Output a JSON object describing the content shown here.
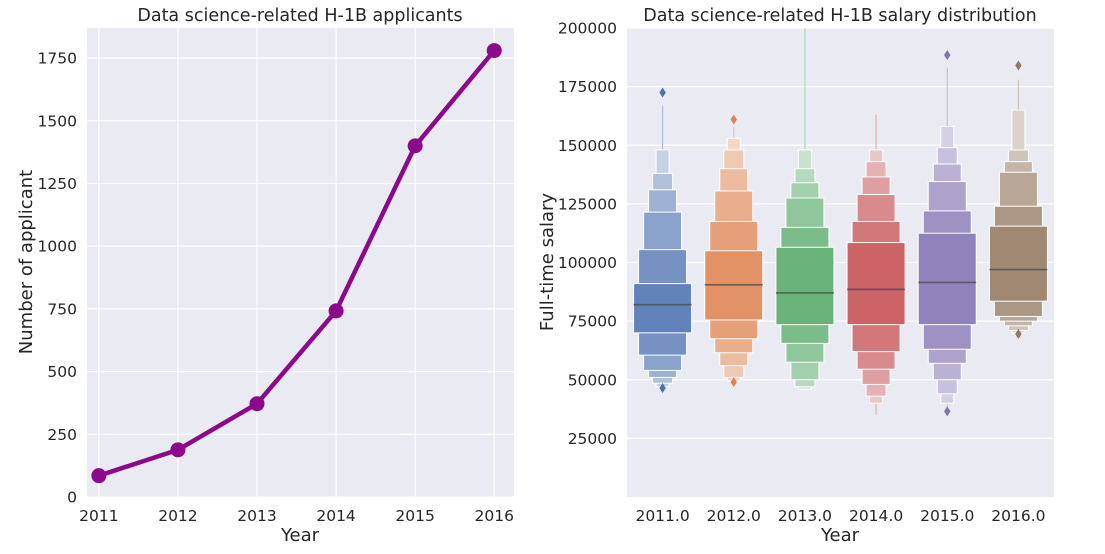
{
  "chart_data": [
    {
      "type": "line",
      "title": "Data science-related H-1B applicants",
      "xlabel": "Year",
      "ylabel": "Number of applicant",
      "x": [
        2011,
        2012,
        2013,
        2014,
        2015,
        2016
      ],
      "xticks": [
        "2011",
        "2012",
        "2013",
        "2014",
        "2015",
        "2016"
      ],
      "xlim": [
        2010.85,
        2016.25
      ],
      "yticks": [
        0,
        250,
        500,
        750,
        1000,
        1250,
        1500,
        1750
      ],
      "ylim": [
        0,
        1870
      ],
      "grid": true,
      "series": [
        {
          "values": [
            85,
            188,
            372,
            742,
            1400,
            1780
          ],
          "color": "#8b0a8b"
        }
      ]
    },
    {
      "type": "boxen",
      "title": "Data science-related H-1B salary distribution",
      "xlabel": "Year",
      "ylabel": "Full-time salary",
      "categories": [
        "2011.0",
        "2012.0",
        "2013.0",
        "2014.0",
        "2015.0",
        "2016.0"
      ],
      "yticks": [
        25000,
        50000,
        75000,
        100000,
        125000,
        150000,
        175000,
        200000
      ],
      "ylim": [
        0,
        200000
      ],
      "grid": true,
      "colors": [
        "#4c72b0",
        "#dd8452",
        "#55a868",
        "#c44e52",
        "#8172b2",
        "#937860"
      ],
      "boxes": [
        {
          "median": 82000,
          "levels": [
            [
              70000,
              91000
            ],
            [
              60500,
              105500
            ],
            [
              54000,
              121500
            ],
            [
              51000,
              131000
            ],
            [
              48500,
              138000
            ],
            [
              47000,
              148000
            ]
          ],
          "whisker": [
            47000,
            167000
          ],
          "outliers": [
            46500,
            172500
          ]
        },
        {
          "median": 90500,
          "levels": [
            [
              75500,
              105000
            ],
            [
              67500,
              117500
            ],
            [
              61500,
              130500
            ],
            [
              56000,
              140000
            ],
            [
              51000,
              148000
            ],
            [
              49500,
              153000
            ]
          ],
          "whisker": [
            50000,
            158000
          ],
          "outliers": [
            49000,
            161000
          ]
        },
        {
          "median": 87000,
          "levels": [
            [
              73500,
              106500
            ],
            [
              65500,
              115000
            ],
            [
              57500,
              127500
            ],
            [
              50000,
              134000
            ],
            [
              47000,
              140000
            ],
            [
              46000,
              148000
            ]
          ],
          "whisker": [
            46000,
            200000
          ],
          "outliers": []
        },
        {
          "median": 88500,
          "levels": [
            [
              73500,
              108500
            ],
            [
              62000,
              117500
            ],
            [
              54500,
              129000
            ],
            [
              48000,
              136500
            ],
            [
              43000,
              143000
            ],
            [
              40000,
              148000
            ]
          ],
          "whisker": [
            35000,
            163000
          ],
          "outliers": []
        },
        {
          "median": 91500,
          "levels": [
            [
              73500,
              112500
            ],
            [
              63000,
              122000
            ],
            [
              57000,
              134500
            ],
            [
              50000,
              142000
            ],
            [
              44000,
              149000
            ],
            [
              40000,
              158000
            ]
          ],
          "whisker": [
            38000,
            183000
          ],
          "outliers": [
            36500,
            188500
          ]
        },
        {
          "median": 97000,
          "levels": [
            [
              83500,
              115500
            ],
            [
              77000,
              124000
            ],
            [
              75000,
              138500
            ],
            [
              73000,
              143000
            ],
            [
              71000,
              148000
            ],
            [
              70000,
              165000
            ]
          ],
          "whisker": [
            69000,
            178000
          ],
          "outliers": [
            69500,
            184000
          ]
        }
      ]
    }
  ]
}
